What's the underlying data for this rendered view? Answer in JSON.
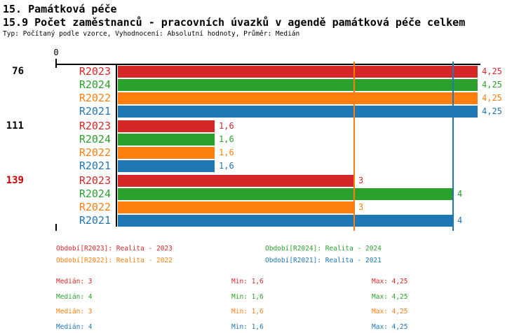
{
  "header": {
    "title": "15. Památková péče",
    "subtitle": "15.9 Počet zaměstnanců - pracovních úvazků v agendě památková péče celkem",
    "meta": "Typ: Počítaný podle vzorce, Vyhodnocení: Absolutní hodnoty, Průměr: Medián"
  },
  "colors": {
    "R2023": "#d62728",
    "R2024": "#2ca02c",
    "R2022": "#ff7f0e",
    "R2021": "#1f77b4",
    "axis": "#000000",
    "flagged_group": "#cc0000"
  },
  "chart_data": {
    "type": "bar",
    "orientation": "horizontal",
    "axis_zero_label": "0",
    "series_order": [
      "R2023",
      "R2024",
      "R2022",
      "R2021"
    ],
    "groups": [
      {
        "label": "76",
        "label_color": "#000000",
        "bars": [
          {
            "series": "R2023",
            "value": 4.25,
            "display": "4,25"
          },
          {
            "series": "R2024",
            "value": 4.25,
            "display": "4,25"
          },
          {
            "series": "R2022",
            "value": 4.25,
            "display": "4,25"
          },
          {
            "series": "R2021",
            "value": 4.25,
            "display": "4,25"
          }
        ]
      },
      {
        "label": "111",
        "label_color": "#000000",
        "bars": [
          {
            "series": "R2023",
            "value": 1.6,
            "display": "1,6"
          },
          {
            "series": "R2024",
            "value": 1.6,
            "display": "1,6"
          },
          {
            "series": "R2022",
            "value": 1.6,
            "display": "1,6"
          },
          {
            "series": "R2021",
            "value": 1.6,
            "display": "1,6"
          }
        ]
      },
      {
        "label": "139",
        "label_color": "#cc0000",
        "bars": [
          {
            "series": "R2023",
            "value": 3,
            "display": "3"
          },
          {
            "series": "R2024",
            "value": 4,
            "display": "4"
          },
          {
            "series": "R2022",
            "value": 3,
            "display": "3"
          },
          {
            "series": "R2021",
            "value": 4,
            "display": "4"
          }
        ]
      }
    ],
    "median_lines": [
      {
        "series": "R2022",
        "value": 3,
        "color": "#ff7f0e"
      },
      {
        "series": "R2021",
        "value": 4,
        "color": "#1f77b4"
      }
    ]
  },
  "legend": [
    {
      "label": "Období[R2023]: Realita - 2023",
      "color": "#d62728",
      "row": 0,
      "col": 0
    },
    {
      "label": "Období[R2024]: Realita - 2024",
      "color": "#2ca02c",
      "row": 0,
      "col": 1
    },
    {
      "label": "Období[R2022]: Realita - 2022",
      "color": "#ff7f0e",
      "row": 1,
      "col": 0
    },
    {
      "label": "Období[R2021]: Realita - 2021",
      "color": "#1f77b4",
      "row": 1,
      "col": 1
    }
  ],
  "stats": [
    {
      "color": "#d62728",
      "median": "Medián: 3",
      "min": "Min: 1,6",
      "max": "Max: 4,25"
    },
    {
      "color": "#2ca02c",
      "median": "Medián: 4",
      "min": "Min: 1,6",
      "max": "Max: 4,25"
    },
    {
      "color": "#ff7f0e",
      "median": "Medián: 3",
      "min": "Min: 1,6",
      "max": "Max: 4,25"
    },
    {
      "color": "#1f77b4",
      "median": "Medián: 4",
      "min": "Min: 1,6",
      "max": "Max: 4,25"
    }
  ]
}
